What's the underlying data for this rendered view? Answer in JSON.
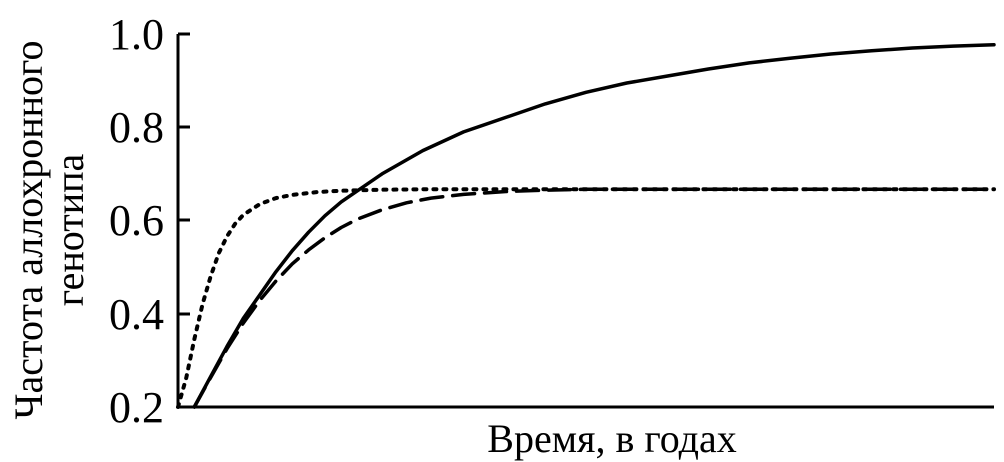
{
  "chart_data": {
    "type": "line",
    "title": "",
    "xlabel": "Время, в годах",
    "ylabel": [
      "Частота аллохронного",
      "генотипа"
    ],
    "xlim": [
      0,
      100
    ],
    "ylim": [
      0.2,
      1.0
    ],
    "yticks": [
      "0.2",
      "0.4",
      "0.6",
      "0.8",
      "1.0"
    ],
    "grid": false,
    "legend": "none",
    "series": [
      {
        "style": "solid",
        "color": "#000000",
        "x": [
          2,
          4,
          6,
          8,
          10,
          12,
          14,
          16,
          18,
          20,
          25,
          30,
          35,
          40,
          45,
          50,
          55,
          60,
          65,
          70,
          75,
          80,
          85,
          90,
          95,
          100
        ],
        "y": [
          0.2,
          0.265,
          0.33,
          0.39,
          0.44,
          0.49,
          0.535,
          0.575,
          0.61,
          0.64,
          0.7,
          0.75,
          0.79,
          0.82,
          0.85,
          0.875,
          0.895,
          0.91,
          0.925,
          0.938,
          0.948,
          0.957,
          0.964,
          0.97,
          0.974,
          0.977
        ]
      },
      {
        "style": "dashed",
        "color": "#000000",
        "x": [
          2,
          4,
          6,
          8,
          10,
          12,
          14,
          16,
          18,
          20,
          22,
          25,
          28,
          31,
          35,
          40,
          45,
          50,
          55,
          60,
          70,
          80,
          90,
          100
        ],
        "y": [
          0.2,
          0.263,
          0.325,
          0.38,
          0.428,
          0.47,
          0.507,
          0.537,
          0.563,
          0.585,
          0.603,
          0.623,
          0.638,
          0.648,
          0.656,
          0.662,
          0.665,
          0.667,
          0.667,
          0.667,
          0.667,
          0.667,
          0.667,
          0.667
        ]
      },
      {
        "style": "dotted",
        "color": "#000000",
        "x": [
          0,
          1,
          2,
          3,
          4,
          5,
          6,
          7,
          8,
          10,
          12,
          14,
          17,
          20,
          25,
          30,
          40,
          50,
          60,
          70,
          80,
          90,
          100
        ],
        "y": [
          0.2,
          0.262,
          0.345,
          0.42,
          0.48,
          0.53,
          0.566,
          0.593,
          0.612,
          0.635,
          0.648,
          0.655,
          0.661,
          0.664,
          0.666,
          0.667,
          0.667,
          0.667,
          0.667,
          0.667,
          0.667,
          0.667,
          0.667
        ]
      }
    ]
  }
}
